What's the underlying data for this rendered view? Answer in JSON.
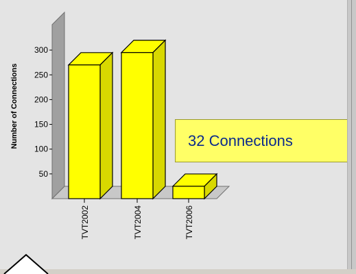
{
  "chart_data": {
    "type": "bar",
    "categories": [
      "TVT2002",
      "TVT2004",
      "TVT2006"
    ],
    "values": [
      270,
      295,
      25
    ],
    "xlabel": "",
    "ylabel": "Number of Connections",
    "yticks": [
      50,
      100,
      150,
      200,
      250,
      300
    ],
    "ylim": [
      0,
      330
    ],
    "bar_color": "#ffff00",
    "grid": false,
    "three_d": true
  },
  "tooltip": {
    "text": "32 Connections"
  }
}
